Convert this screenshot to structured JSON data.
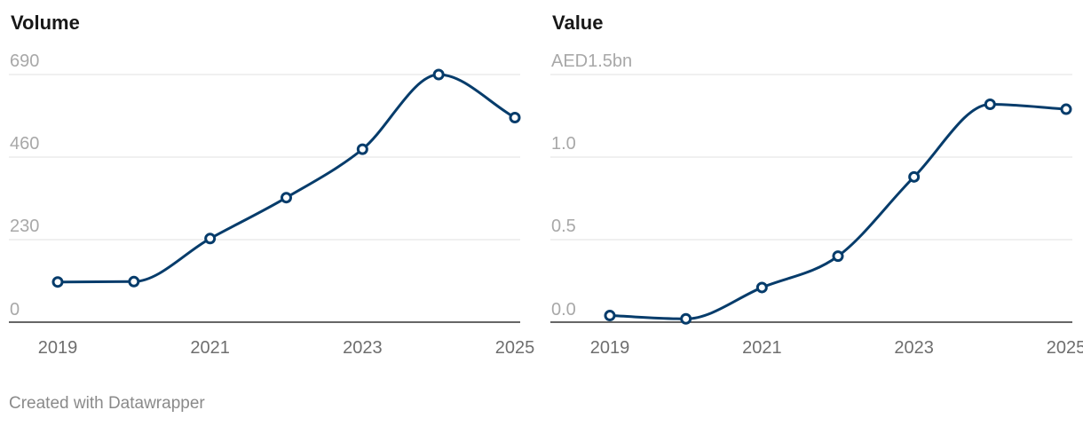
{
  "chart_data": [
    {
      "type": "line",
      "title": "Volume",
      "x": [
        2019,
        2020,
        2021,
        2022,
        2023,
        2024,
        2025
      ],
      "x_tick_labels": [
        "2019",
        "2021",
        "2023",
        "2025"
      ],
      "x_tick_values": [
        2019,
        2021,
        2023,
        2025
      ],
      "y_tick_labels": [
        "0",
        "230",
        "460",
        "690"
      ],
      "y_tick_values": [
        0,
        230,
        460,
        690
      ],
      "ylim": [
        0,
        690
      ],
      "values": [
        112,
        113,
        233,
        347,
        482,
        690,
        570
      ],
      "grid": true,
      "line_color": "#063c6b"
    },
    {
      "type": "line",
      "title": "Value",
      "x": [
        2019,
        2020,
        2021,
        2022,
        2023,
        2024,
        2025
      ],
      "x_tick_labels": [
        "2019",
        "2021",
        "2023",
        "2025"
      ],
      "x_tick_values": [
        2019,
        2021,
        2023,
        2025
      ],
      "y_tick_labels": [
        "0.0",
        "0.5",
        "1.0",
        "AED1.5bn"
      ],
      "y_tick_values": [
        0,
        0.5,
        1.0,
        1.5
      ],
      "ylim": [
        0,
        1.5
      ],
      "values": [
        0.04,
        0.02,
        0.21,
        0.4,
        0.88,
        1.32,
        1.29
      ],
      "grid": true,
      "line_color": "#063c6b"
    }
  ],
  "footer": {
    "credit": "Created with Datawrapper"
  }
}
